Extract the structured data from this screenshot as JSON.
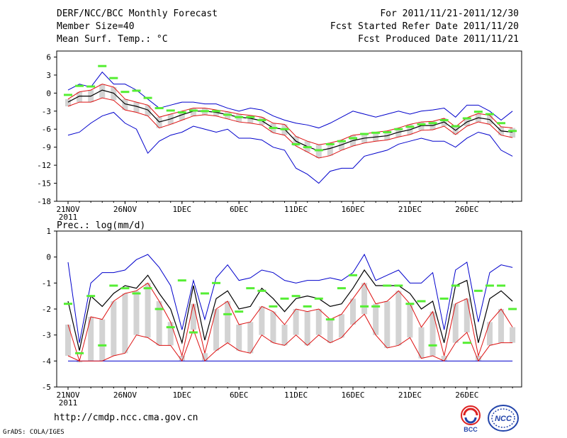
{
  "header": {
    "title": "DERF/NCC/BCC Monthly Forecast",
    "member_size": "Member Size=40",
    "variable1": "Mean Surf. Temp.: °C",
    "period": "For 2011/11/21-2011/12/30",
    "started": "Fcst Started Refer Date 2011/11/20",
    "produced": "Fcst Produced Date 2011/11/21"
  },
  "footer": {
    "url": "http://cmdp.ncc.cma.gov.cn",
    "credit": "GrADS: COLA/IGES",
    "logo1_text": "BCC",
    "logo2_text": "NCC"
  },
  "colors": {
    "box": "#d3d3d3",
    "median": "#55ee33",
    "mean": "#000000",
    "quartile": "#dd1111",
    "extreme": "#0000cc"
  },
  "chart_data": [
    {
      "type": "box-whisker",
      "title": "Mean Surf. Temp.: °C",
      "x_tick_labels": [
        "21NOV\n2011",
        "26NOV",
        "1DEC",
        "6DEC",
        "11DEC",
        "16DEC",
        "21DEC",
        "26DEC"
      ],
      "ylim": [
        -18,
        7
      ],
      "y_ticks": [
        -18,
        -15,
        -12,
        -9,
        -6,
        -3,
        0,
        3,
        6
      ],
      "median": [
        -0.3,
        1.2,
        1.1,
        4.5,
        2.5,
        0.2,
        0.4,
        -0.8,
        -2.5,
        -2.9,
        -3.2,
        -2.9,
        -3,
        -3,
        -3.6,
        -4,
        -4,
        -4.5,
        -5.8,
        -6.0,
        -8.5,
        -9.0,
        -9.5,
        -8.5,
        -8.0,
        -7.5,
        -6.8,
        -6.6,
        -6.5,
        -6.0,
        -5.6,
        -5.2,
        -5.0,
        -4.5,
        -5.5,
        -4.2,
        -3.1,
        -3.5,
        -5.0,
        -6.3
      ],
      "mean": [
        -1.5,
        -0.5,
        -0.5,
        0.5,
        0.0,
        -1.8,
        -2.2,
        -2.8,
        -4.8,
        -4.3,
        -3.6,
        -3.0,
        -3.0,
        -3.2,
        -3.6,
        -4.0,
        -4.2,
        -4.6,
        -5.8,
        -6.0,
        -8.0,
        -8.9,
        -9.6,
        -9.2,
        -8.6,
        -7.9,
        -7.5,
        -7.3,
        -7.1,
        -6.5,
        -6.1,
        -5.4,
        -5.4,
        -4.8,
        -6.2,
        -4.8,
        -4.1,
        -4.4,
        -6.3,
        -6.5
      ],
      "q_upper": [
        -1.0,
        0.2,
        0.5,
        1.5,
        1.0,
        -1.0,
        -1.5,
        -2.0,
        -4.0,
        -3.5,
        -3.0,
        -2.5,
        -2.5,
        -2.8,
        -3.1,
        -3.5,
        -3.7,
        -4.0,
        -5.0,
        -5.2,
        -7.2,
        -8.0,
        -8.6,
        -8.3,
        -7.8,
        -7.0,
        -6.8,
        -6.5,
        -6.3,
        -5.8,
        -5.2,
        -4.8,
        -4.7,
        -4.2,
        -5.6,
        -4.1,
        -3.4,
        -3.7,
        -5.6,
        -5.8
      ],
      "q_lower": [
        -2.2,
        -1.5,
        -1.5,
        -0.8,
        -1.2,
        -2.8,
        -3.2,
        -3.8,
        -5.8,
        -5.2,
        -4.5,
        -3.8,
        -3.6,
        -3.8,
        -4.3,
        -4.8,
        -5.0,
        -5.3,
        -6.6,
        -7.0,
        -8.8,
        -9.8,
        -10.8,
        -10.4,
        -9.5,
        -8.8,
        -8.3,
        -8.0,
        -7.8,
        -7.3,
        -6.9,
        -6.2,
        -6.1,
        -5.5,
        -6.9,
        -5.5,
        -4.8,
        -5.2,
        -7.0,
        -7.4
      ],
      "max": [
        0.5,
        1.5,
        1.0,
        3.5,
        1.5,
        1.5,
        0.5,
        -1.0,
        -2.5,
        -2.0,
        -1.5,
        -1.5,
        -1.8,
        -1.8,
        -2.5,
        -3.0,
        -2.5,
        -2.8,
        -3.8,
        -4.5,
        -5.0,
        -5.3,
        -5.8,
        -5.0,
        -4.0,
        -3.0,
        -3.5,
        -4.0,
        -3.5,
        -3.0,
        -3.5,
        -3.0,
        -2.8,
        -2.5,
        -4.0,
        -2.0,
        -2.0,
        -3.0,
        -4.5,
        -3.0
      ],
      "min": [
        -7.0,
        -6.5,
        -5.0,
        -3.8,
        -3.2,
        -5.0,
        -6.0,
        -10.0,
        -8.0,
        -7.0,
        -6.5,
        -5.5,
        -6.0,
        -6.5,
        -6.0,
        -7.5,
        -7.5,
        -7.8,
        -9.0,
        -9.5,
        -12.5,
        -13.5,
        -15.0,
        -13.0,
        -12.5,
        -12.5,
        -10.5,
        -10.0,
        -9.5,
        -8.5,
        -8.0,
        -7.5,
        -8.0,
        -8.0,
        -9.0,
        -7.5,
        -6.5,
        -7.0,
        -9.5,
        -10.5
      ]
    },
    {
      "type": "box-whisker",
      "title": "Prec.: log(mm/d)",
      "x_tick_labels": [
        "21NOV\n2011",
        "26NOV",
        "1DEC",
        "6DEC",
        "11DEC",
        "16DEC",
        "21DEC",
        "26DEC"
      ],
      "ylim": [
        -5,
        1
      ],
      "y_ticks": [
        -5,
        -4,
        -3,
        -2,
        -1,
        0,
        1
      ],
      "median": [
        -1.8,
        -3.7,
        -1.5,
        -3.4,
        -1.1,
        -1.2,
        -1.4,
        -1.2,
        -2.0,
        -2.7,
        -0.9,
        -2.9,
        -1.4,
        -1.0,
        -2.2,
        -2.1,
        -1.2,
        -1.3,
        -1.9,
        -1.6,
        -1.5,
        -1.9,
        -1.6,
        -2.4,
        -1.2,
        -0.7,
        -1.9,
        -1.9,
        -1.1,
        -1.1,
        -1.8,
        -1.7,
        -3.4,
        -1.6,
        -1.1,
        -3.3,
        -1.3,
        -1.1,
        -1.1,
        -2.0
      ],
      "mean": [
        -1.7,
        -3.6,
        -1.5,
        -1.9,
        -1.4,
        -1.1,
        -1.2,
        -0.7,
        -1.4,
        -2.0,
        -3.3,
        -1.1,
        -3.2,
        -1.6,
        -1.3,
        -2.0,
        -1.9,
        -1.2,
        -1.6,
        -2.1,
        -1.6,
        -1.5,
        -1.6,
        -1.9,
        -1.8,
        -1.2,
        -0.5,
        -1.1,
        -1.1,
        -1.1,
        -1.4,
        -2.0,
        -1.7,
        -3.3,
        -1.1,
        -0.9,
        -3.3,
        -1.6,
        -1.3,
        -1.7
      ],
      "q_upper": [
        -2.6,
        -4.0,
        -2.3,
        -2.4,
        -1.7,
        -1.4,
        -1.3,
        -1.0,
        -1.7,
        -2.5,
        -3.8,
        -1.8,
        -3.7,
        -2.0,
        -1.7,
        -2.6,
        -2.5,
        -1.9,
        -2.1,
        -2.6,
        -2.0,
        -2.1,
        -2.0,
        -2.4,
        -2.2,
        -1.6,
        -1.0,
        -1.8,
        -1.7,
        -1.3,
        -1.8,
        -2.7,
        -2.1,
        -3.8,
        -1.8,
        -1.6,
        -3.8,
        -2.5,
        -2.0,
        -2.7
      ],
      "q_lower": [
        -3.8,
        -4.0,
        -4.0,
        -4.0,
        -3.8,
        -3.7,
        -3.0,
        -3.1,
        -3.4,
        -3.4,
        -4.0,
        -2.8,
        -4.0,
        -3.6,
        -3.3,
        -3.6,
        -3.7,
        -3.0,
        -3.3,
        -3.4,
        -3.0,
        -3.4,
        -3.0,
        -3.3,
        -3.1,
        -2.6,
        -2.2,
        -3.0,
        -3.5,
        -3.4,
        -3.1,
        -3.9,
        -3.8,
        -4.0,
        -3.3,
        -2.9,
        -4.0,
        -3.4,
        -3.3,
        -3.3
      ],
      "max": [
        -0.2,
        -3.3,
        -1.0,
        -0.6,
        -0.6,
        -0.5,
        -0.1,
        0.1,
        -0.4,
        -1.1,
        -2.8,
        -0.9,
        -2.4,
        -0.8,
        -0.3,
        -0.9,
        -0.8,
        -0.5,
        -0.6,
        -0.9,
        -1.0,
        -0.9,
        -0.9,
        -0.8,
        -0.9,
        -0.6,
        0.1,
        -0.9,
        -0.7,
        -0.5,
        -1.0,
        -1.0,
        -0.6,
        -2.8,
        -0.5,
        -0.2,
        -2.5,
        -0.6,
        -0.3,
        -0.4
      ],
      "min": [
        -4.0,
        -4.0,
        -4.0,
        -4.0,
        -4.0,
        -4.0,
        -4.0,
        -4.0,
        -4.0,
        -4.0,
        -4.0,
        -4.0,
        -4.0,
        -4.0,
        -4.0,
        -4.0,
        -4.0,
        -4.0,
        -4.0,
        -4.0,
        -4.0,
        -4.0,
        -4.0,
        -4.0,
        -4.0,
        -4.0,
        -4.0,
        -4.0,
        -4.0,
        -4.0,
        -4.0,
        -4.0,
        -4.0,
        -4.0,
        -4.0,
        -4.0,
        -4.0,
        -4.0,
        -4.0,
        -4.0
      ]
    }
  ]
}
